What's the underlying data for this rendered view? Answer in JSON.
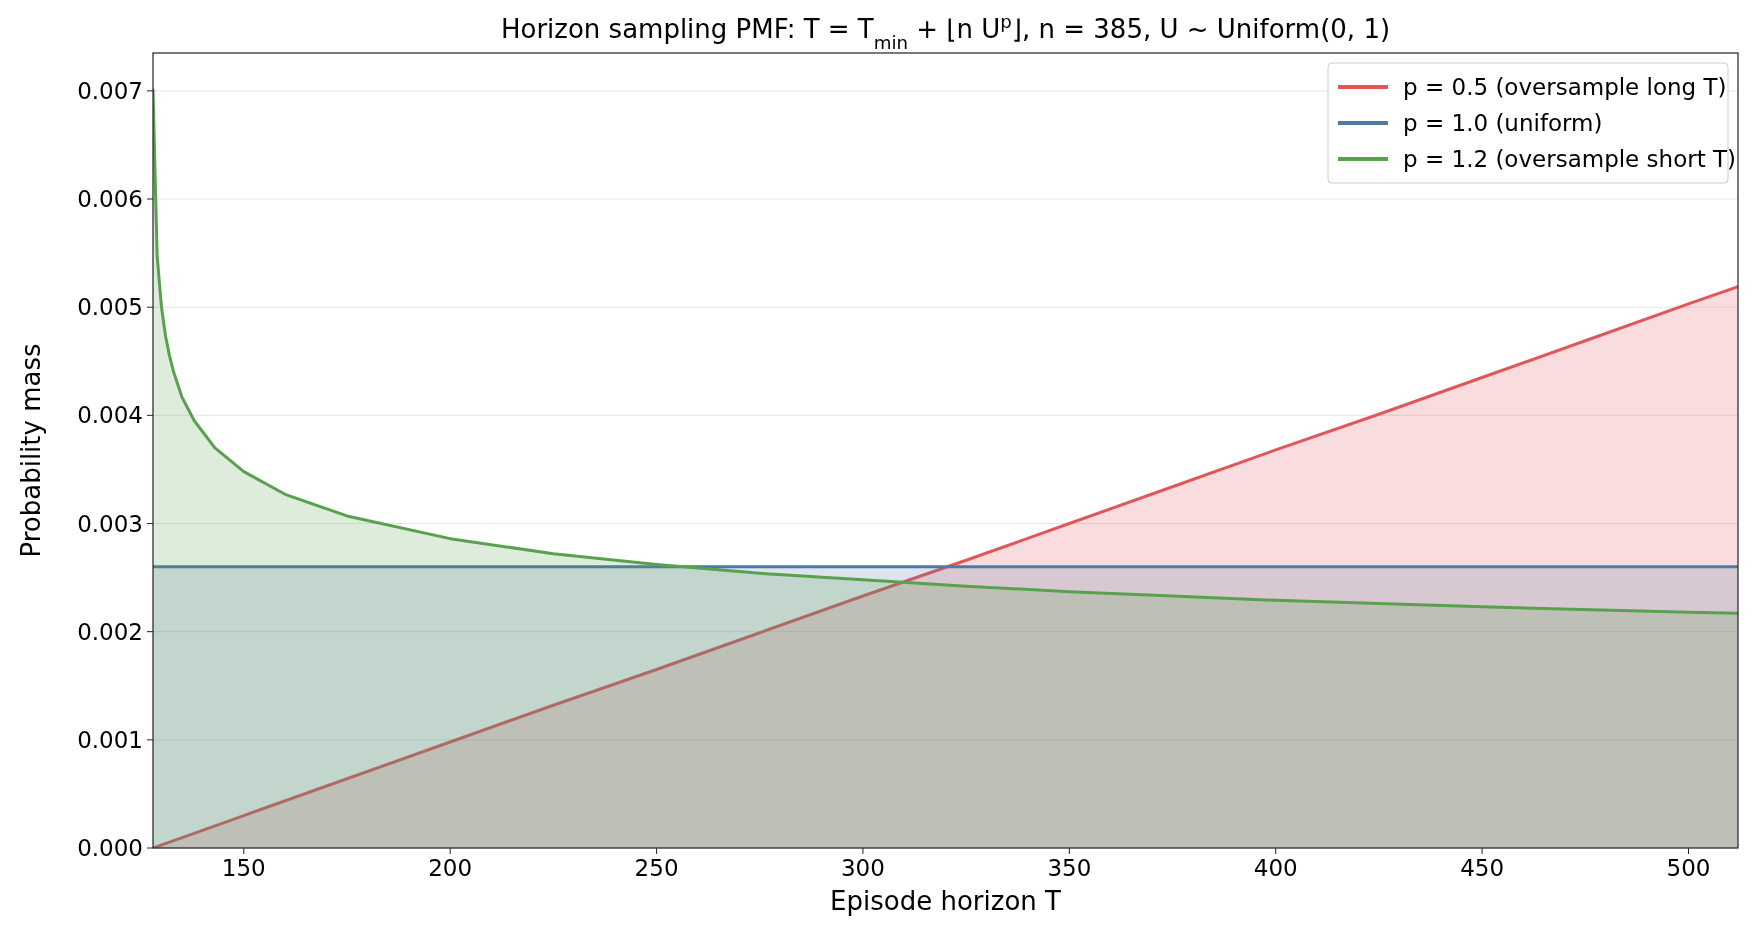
{
  "chart_data": {
    "type": "area",
    "title": "Horizon sampling PMF: T = T$_{min}$ + ⌊n U$^{p}$⌋, n = 385, U ~ Uniform(0, 1)",
    "xlabel": "Episode horizon T",
    "ylabel": "Probability mass",
    "xlim": [
      128,
      512
    ],
    "ylim": [
      0,
      0.00735
    ],
    "xticks": [
      150,
      200,
      250,
      300,
      350,
      400,
      450,
      500
    ],
    "yticks": [
      {
        "value": 0,
        "label": "0.000"
      },
      0.001,
      0.002,
      0.003,
      0.004,
      0.005,
      0.006,
      0.007
    ],
    "grid": "y",
    "legend": "top right",
    "series": [
      {
        "name": "p = 0.5 (oversample long T)",
        "color": "#e15759",
        "x": [
          128,
          150,
          175,
          200,
          225,
          250,
          275,
          300,
          325,
          350,
          375,
          400,
          425,
          450,
          475,
          500,
          512
        ],
        "values": [
          0.0,
          0.0003,
          0.00064,
          0.00098,
          0.00132,
          0.00165,
          0.00199,
          0.00233,
          0.00266,
          0.003,
          0.00334,
          0.00368,
          0.00401,
          0.00435,
          0.00469,
          0.00503,
          0.00519
        ]
      },
      {
        "name": "p = 1.0 (uniform)",
        "color": "#4e79a7",
        "x": [
          128,
          512
        ],
        "values": [
          0.0026,
          0.0026
        ]
      },
      {
        "name": "p = 1.2 (oversample short T)",
        "color": "#59a14f",
        "x": [
          128,
          129,
          130,
          131,
          132,
          133,
          135,
          138,
          143,
          150,
          160,
          175,
          200,
          225,
          250,
          275,
          300,
          325,
          350,
          375,
          400,
          450,
          500,
          512
        ],
        "values": [
          0.00701,
          0.00548,
          0.00502,
          0.00474,
          0.00455,
          0.0044,
          0.00417,
          0.00395,
          0.0037,
          0.00348,
          0.00327,
          0.00307,
          0.00286,
          0.00272,
          0.00262,
          0.00254,
          0.00248,
          0.00242,
          0.00237,
          0.00233,
          0.00229,
          0.00223,
          0.00218,
          0.00217
        ]
      }
    ]
  }
}
